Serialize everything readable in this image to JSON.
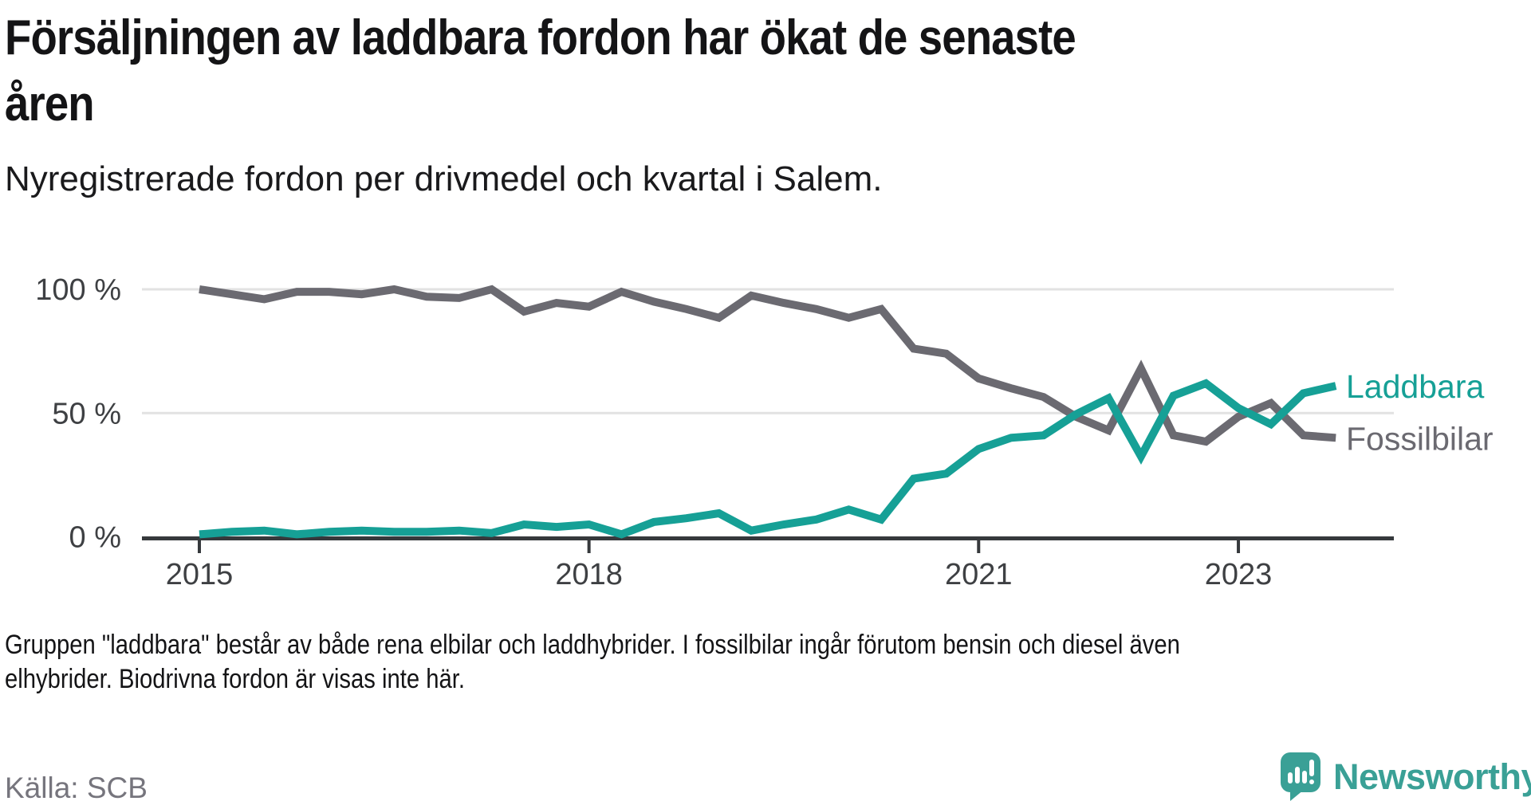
{
  "title": {
    "line1": "Försäljningen av laddbara fordon har ökat de senaste",
    "line2": "åren"
  },
  "subtitle": "Nyregistrerade fordon per drivmedel och kvartal i Salem.",
  "footnote": {
    "line1": "Gruppen \"laddbara\" består av både rena elbilar och laddhybrider. I fossilbilar ingår förutom bensin och diesel även",
    "line2": "elhybrider. Biodrivna fordon är visas inte här."
  },
  "source": "Källa: SCB",
  "brand": {
    "name": "Newsworthy",
    "color": "#3aa096",
    "icon": "newsworthy-speech-bubble-chart-icon"
  },
  "colors": {
    "laddbara": "#16a096",
    "fossilbilar": "#6b6a71",
    "grid": "#e2e2e2",
    "axis": "#36393c",
    "tick_label": "#3e4043"
  },
  "chart_data": {
    "type": "line",
    "unit": "%",
    "frequency": "quarterly",
    "x_start": "2015 Q1",
    "x_end": "2023 Q4",
    "ylim": [
      0,
      100
    ],
    "grid": "horizontal",
    "legend_position": "right-of-line-ends",
    "categories": [
      "2015 Q1",
      "2015 Q2",
      "2015 Q3",
      "2015 Q4",
      "2016 Q1",
      "2016 Q2",
      "2016 Q3",
      "2016 Q4",
      "2017 Q1",
      "2017 Q2",
      "2017 Q3",
      "2017 Q4",
      "2018 Q1",
      "2018 Q2",
      "2018 Q3",
      "2018 Q4",
      "2019 Q1",
      "2019 Q2",
      "2019 Q3",
      "2019 Q4",
      "2020 Q1",
      "2020 Q2",
      "2020 Q3",
      "2020 Q4",
      "2021 Q1",
      "2021 Q2",
      "2021 Q3",
      "2021 Q4",
      "2022 Q1",
      "2022 Q2",
      "2022 Q3",
      "2022 Q4",
      "2023 Q1",
      "2023 Q2",
      "2023 Q3",
      "2023 Q4"
    ],
    "series": [
      {
        "name": "Laddbara",
        "color": "#16a096",
        "values": [
          1,
          2,
          2.5,
          1,
          2,
          2.5,
          2,
          2,
          2.5,
          1.5,
          5,
          4,
          5,
          1,
          6,
          7.5,
          9.5,
          2.5,
          5,
          7,
          11,
          7,
          23.5,
          25.5,
          35.5,
          40,
          41,
          49.5,
          56,
          32.5,
          57,
          62,
          52,
          45.5,
          58,
          61
        ]
      },
      {
        "name": "Fossilbilar",
        "color": "#6b6a71",
        "values": [
          100,
          98,
          96,
          99,
          99,
          98,
          100,
          97,
          96.5,
          100,
          91,
          94.5,
          93,
          99,
          95,
          92,
          88.5,
          97.5,
          94.5,
          92,
          88.5,
          92,
          76,
          74,
          64,
          60,
          56.5,
          48.5,
          43,
          68,
          41,
          38.5,
          48.5,
          54,
          41,
          40
        ]
      }
    ],
    "y_ticks": [
      {
        "label": "100 %",
        "value": 100
      },
      {
        "label": "50 %",
        "value": 50
      },
      {
        "label": "0 %",
        "value": 0
      }
    ],
    "x_ticks": [
      {
        "label": "2015",
        "quarter_index": 0
      },
      {
        "label": "2018",
        "quarter_index": 12
      },
      {
        "label": "2021",
        "quarter_index": 24
      },
      {
        "label": "2023",
        "quarter_index": 32
      }
    ]
  }
}
